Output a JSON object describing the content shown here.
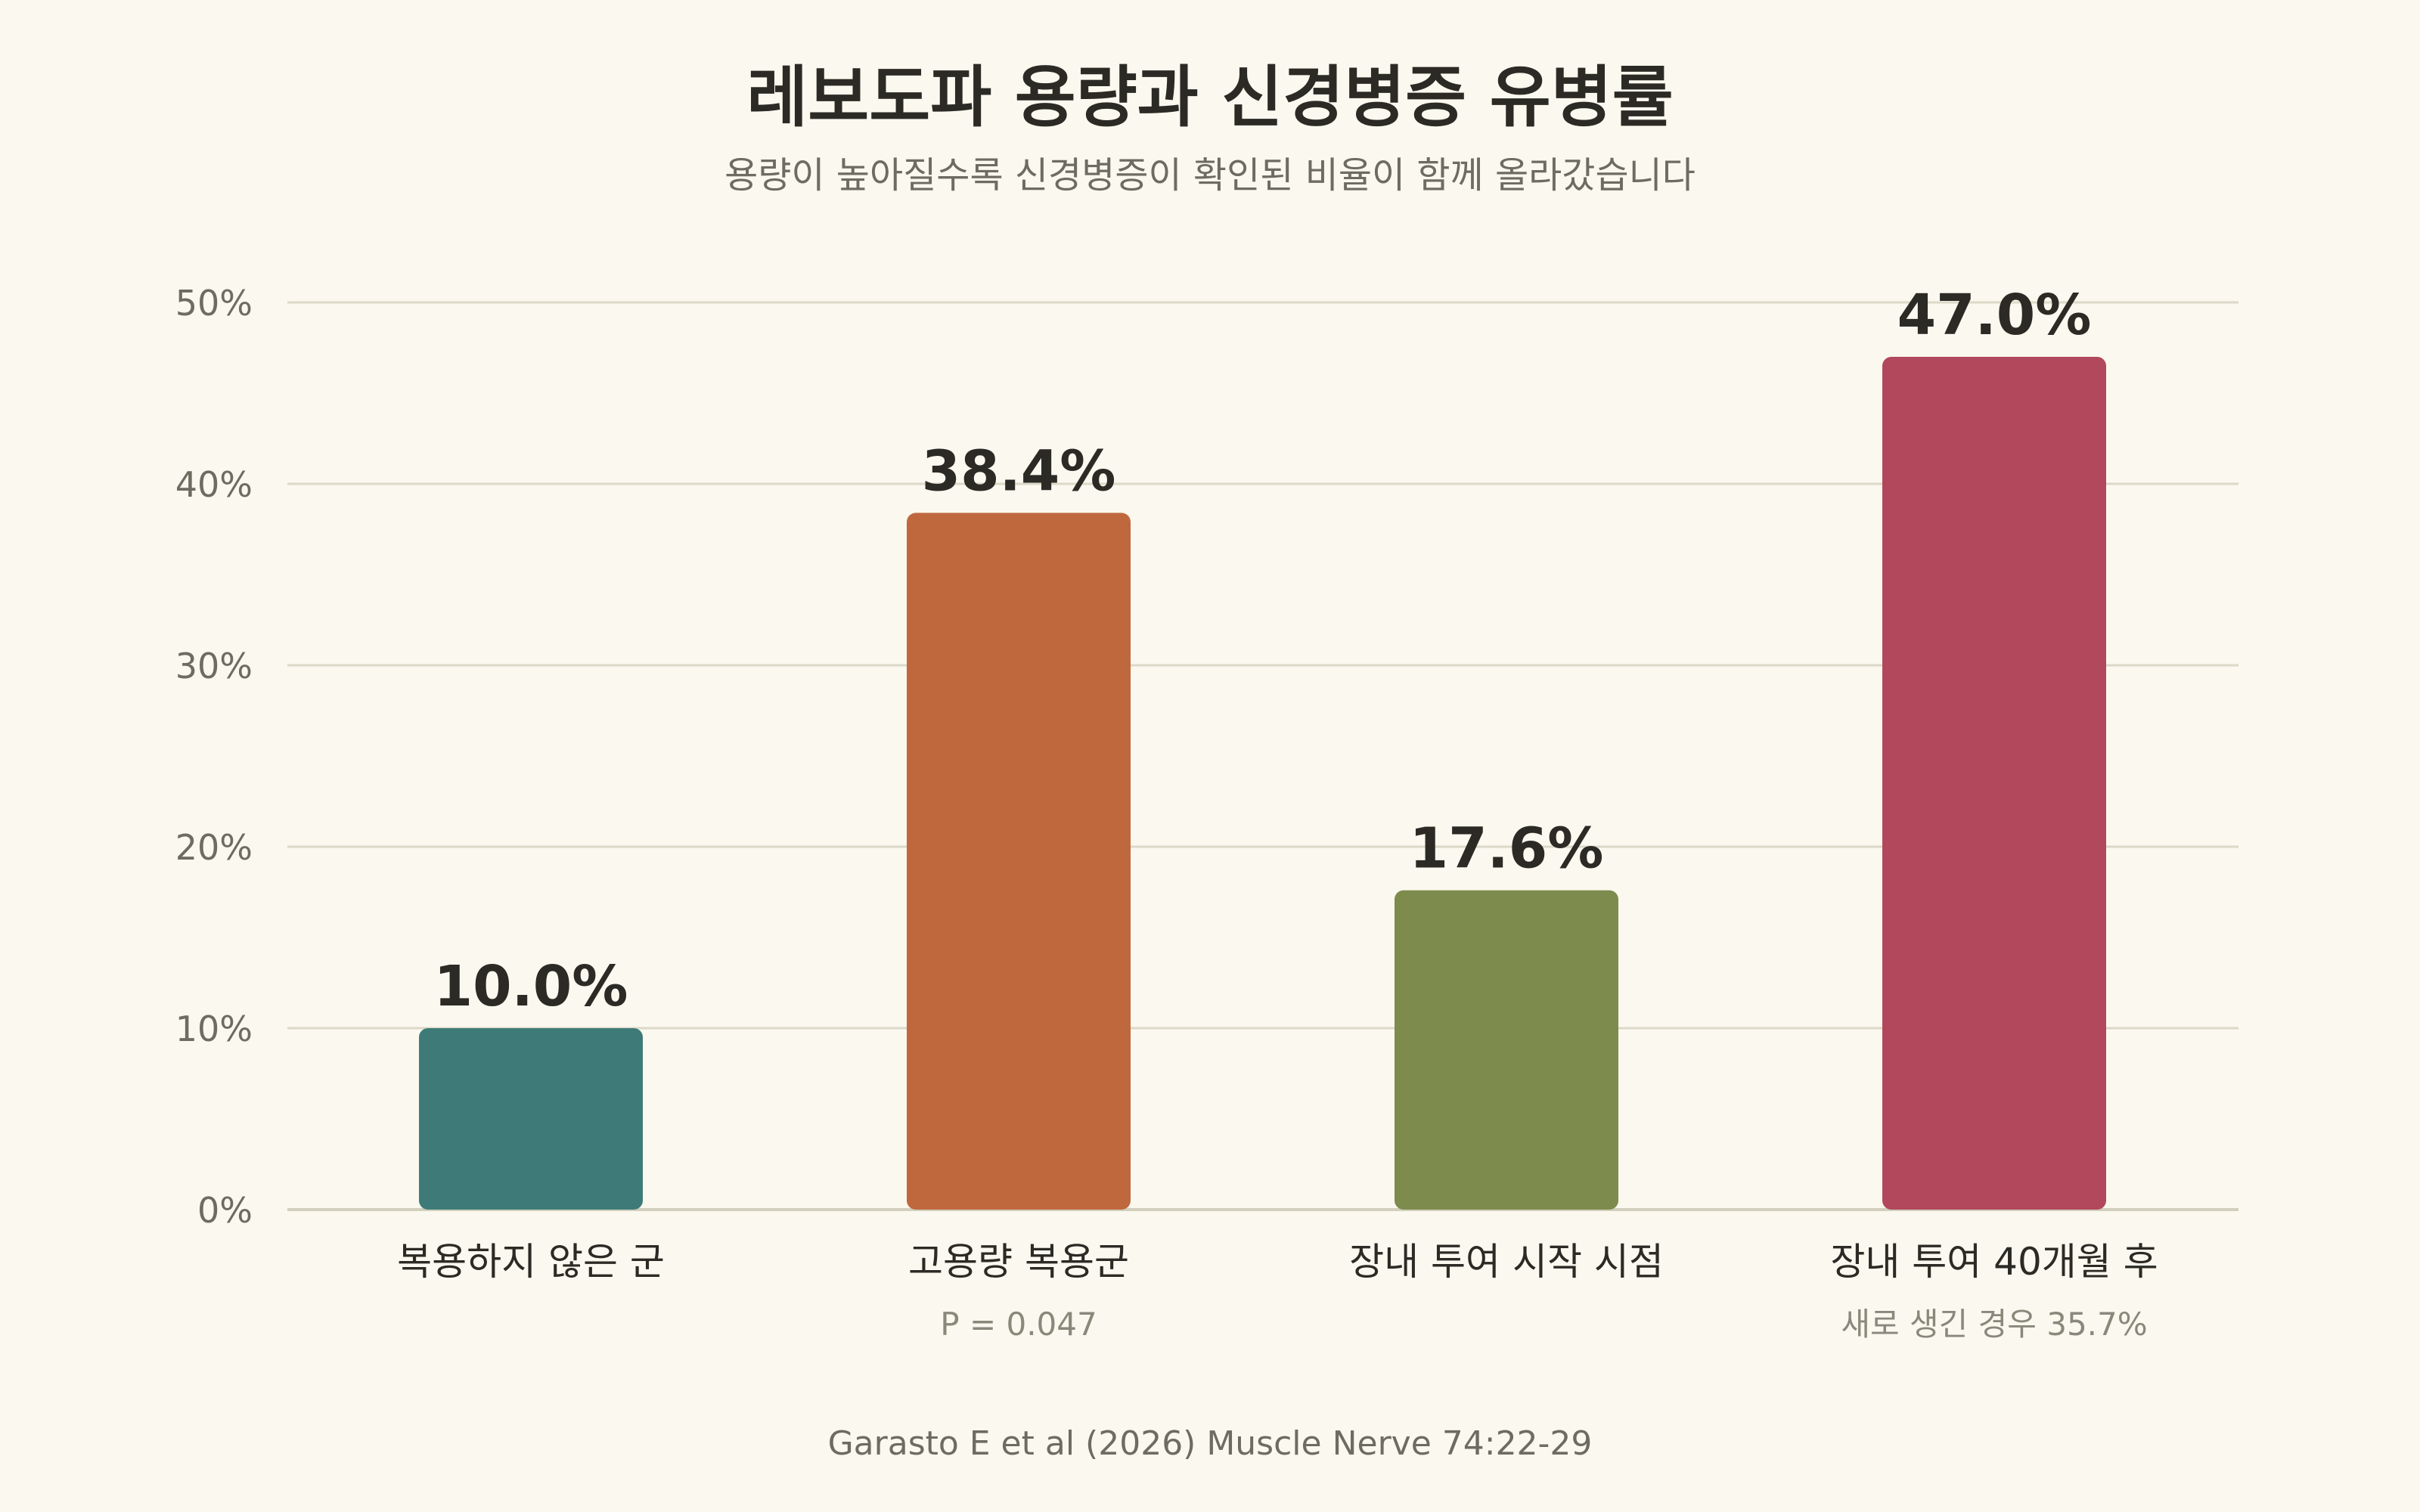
{
  "title": "레보도파 용량과 신경병증 유병률",
  "subtitle": "용량이 높아질수록 신경병증이 확인된 비율이 함께 올라갔습니다",
  "source": "Garasto E et al (2026) Muscle Nerve 74:22-29",
  "chart_data": {
    "type": "bar",
    "title": "레보도파 용량과 신경병증 유병률",
    "subtitle": "용량이 높아질수록 신경병증이 확인된 비율이 함께 올라갔습니다",
    "categories": [
      "복용하지 않은 군",
      "고용량 복용군",
      "장내 투여 시작 시점",
      "장내 투여 40개월 후"
    ],
    "sublabels": [
      "",
      "P = 0.047",
      "",
      "새로 생긴 경우 35.7%"
    ],
    "values": [
      10.0,
      38.4,
      17.6,
      47.0
    ],
    "value_labels": [
      "10.0%",
      "38.4%",
      "17.6%",
      "47.0%"
    ],
    "colors": [
      "#3e7b78",
      "#bf683e",
      "#7d8b4d",
      "#b1485c"
    ],
    "ylim": [
      0,
      50
    ],
    "yticks": [
      0,
      10,
      20,
      30,
      40,
      50
    ],
    "ytick_labels": [
      "0%",
      "10%",
      "20%",
      "30%",
      "40%",
      "50%"
    ],
    "grid": true,
    "legend": "none"
  }
}
